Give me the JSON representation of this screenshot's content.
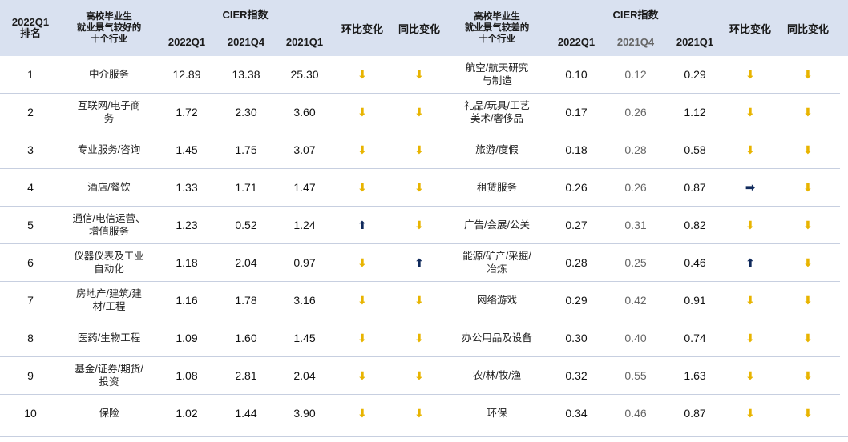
{
  "header": {
    "rank_label": "2022Q1\n排名",
    "good_label": "高校毕业生\n就业景气较好的\n十个行业",
    "bad_label": "高校毕业生\n就业景气较差的\n十个行业",
    "cier_label": "CIER指数",
    "cols": [
      "2022Q1",
      "2021Q4",
      "2021Q1",
      "环比变化",
      "同比变化"
    ]
  },
  "colors": {
    "down": "#e8b400",
    "up": "#102a5c",
    "header_bg": "#d9e1f0"
  },
  "rows": [
    {
      "rank": "1",
      "good": {
        "name": "中介服务",
        "q1_22": "12.89",
        "q4_21": "13.38",
        "q1_21": "25.30",
        "qoq": "down",
        "yoy": "down"
      },
      "bad": {
        "name": "航空/航天研究\n与制造",
        "q1_22": "0.10",
        "q4_21": "0.12",
        "q1_21": "0.29",
        "qoq": "down",
        "yoy": "down"
      }
    },
    {
      "rank": "2",
      "good": {
        "name": "互联网/电子商\n务",
        "q1_22": "1.72",
        "q4_21": "2.30",
        "q1_21": "3.60",
        "qoq": "down",
        "yoy": "down"
      },
      "bad": {
        "name": "礼品/玩具/工艺\n美术/奢侈品",
        "q1_22": "0.17",
        "q4_21": "0.26",
        "q1_21": "1.12",
        "qoq": "down",
        "yoy": "down"
      }
    },
    {
      "rank": "3",
      "good": {
        "name": "专业服务/咨询",
        "q1_22": "1.45",
        "q4_21": "1.75",
        "q1_21": "3.07",
        "qoq": "down",
        "yoy": "down"
      },
      "bad": {
        "name": "旅游/度假",
        "q1_22": "0.18",
        "q4_21": "0.28",
        "q1_21": "0.58",
        "qoq": "down",
        "yoy": "down"
      }
    },
    {
      "rank": "4",
      "good": {
        "name": "酒店/餐饮",
        "q1_22": "1.33",
        "q4_21": "1.71",
        "q1_21": "1.47",
        "qoq": "down",
        "yoy": "down"
      },
      "bad": {
        "name": "租赁服务",
        "q1_22": "0.26",
        "q4_21": "0.26",
        "q1_21": "0.87",
        "qoq": "flat",
        "yoy": "down"
      }
    },
    {
      "rank": "5",
      "good": {
        "name": "通信/电信运营、\n增值服务",
        "q1_22": "1.23",
        "q4_21": "0.52",
        "q1_21": "1.24",
        "qoq": "up",
        "yoy": "down"
      },
      "bad": {
        "name": "广告/会展/公关",
        "q1_22": "0.27",
        "q4_21": "0.31",
        "q1_21": "0.82",
        "qoq": "down",
        "yoy": "down"
      }
    },
    {
      "rank": "6",
      "good": {
        "name": "仪器仪表及工业\n自动化",
        "q1_22": "1.18",
        "q4_21": "2.04",
        "q1_21": "0.97",
        "qoq": "down",
        "yoy": "up"
      },
      "bad": {
        "name": "能源/矿产/采掘/\n冶炼",
        "q1_22": "0.28",
        "q4_21": "0.25",
        "q1_21": "0.46",
        "qoq": "up",
        "yoy": "down"
      }
    },
    {
      "rank": "7",
      "good": {
        "name": "房地产/建筑/建\n材/工程",
        "q1_22": "1.16",
        "q4_21": "1.78",
        "q1_21": "3.16",
        "qoq": "down",
        "yoy": "down"
      },
      "bad": {
        "name": "网络游戏",
        "q1_22": "0.29",
        "q4_21": "0.42",
        "q1_21": "0.91",
        "qoq": "down",
        "yoy": "down"
      }
    },
    {
      "rank": "8",
      "good": {
        "name": "医药/生物工程",
        "q1_22": "1.09",
        "q4_21": "1.60",
        "q1_21": "1.45",
        "qoq": "down",
        "yoy": "down"
      },
      "bad": {
        "name": "办公用品及设备",
        "q1_22": "0.30",
        "q4_21": "0.40",
        "q1_21": "0.74",
        "qoq": "down",
        "yoy": "down"
      }
    },
    {
      "rank": "9",
      "good": {
        "name": "基金/证券/期货/\n投资",
        "q1_22": "1.08",
        "q4_21": "2.81",
        "q1_21": "2.04",
        "qoq": "down",
        "yoy": "down"
      },
      "bad": {
        "name": "农/林/牧/渔",
        "q1_22": "0.32",
        "q4_21": "0.55",
        "q1_21": "1.63",
        "qoq": "down",
        "yoy": "down"
      }
    },
    {
      "rank": "10",
      "good": {
        "name": "保险",
        "q1_22": "1.02",
        "q4_21": "1.44",
        "q1_21": "3.90",
        "qoq": "down",
        "yoy": "down"
      },
      "bad": {
        "name": "环保",
        "q1_22": "0.34",
        "q4_21": "0.46",
        "q1_21": "0.87",
        "qoq": "down",
        "yoy": "down"
      }
    }
  ]
}
